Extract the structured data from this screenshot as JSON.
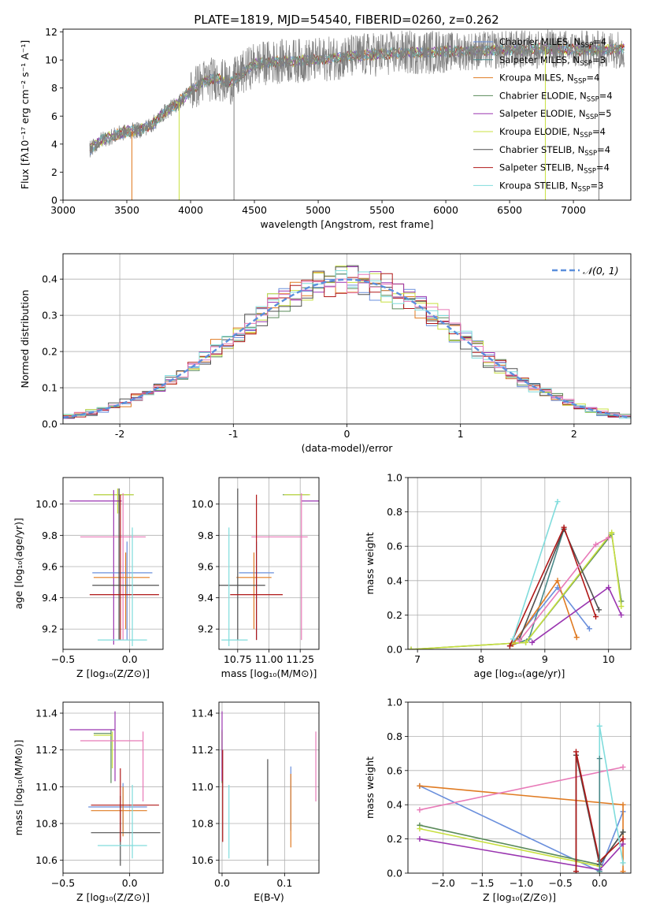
{
  "title": "PLATE=1819, MJD=54540, FIBERID=0260, z=0.262",
  "colors": {
    "chabrier_miles": "#6a8fdc",
    "salpeter_miles": "#4a8a8a",
    "kroupa_miles": "#e07b22",
    "chabrier_elodie": "#5a8a5a",
    "salpeter_elodie": "#9a35b0",
    "kroupa_elodie": "#c8e040",
    "chabrier_stelib": "#505050",
    "salpeter_stelib": "#b01818",
    "kroupa_stelib": "#80dcdc",
    "pink": "#e87ab8",
    "grey_spectrum": "#7f7f7f",
    "normal_curve": "#5b8fdc",
    "grid": "#b0b0b0"
  },
  "chart_data": [
    {
      "id": "spectrum",
      "type": "line",
      "title": "PLATE=1819, MJD=54540, FIBERID=0260, z=0.262",
      "xlabel": "wavelength [Angstrom, rest frame]",
      "ylabel": "Flux [fλ10⁻¹⁷ erg cm⁻² s⁻¹ A⁻¹]",
      "xlim": [
        3000,
        7450
      ],
      "ylim": [
        0,
        12.2
      ],
      "xticks": [
        3000,
        3500,
        4000,
        4500,
        5000,
        5500,
        6000,
        6500,
        7000
      ],
      "yticks": [
        0,
        2,
        4,
        6,
        8,
        10,
        12
      ],
      "legend_position": "right",
      "grid": false,
      "continuum": {
        "x": [
          3210,
          3300,
          3400,
          3500,
          3600,
          3700,
          3800,
          3900,
          4000,
          4100,
          4200,
          4300,
          4500,
          4700,
          5000,
          5300,
          5600,
          6000,
          6400,
          6800,
          7200,
          7400
        ],
        "y": [
          3.6,
          4.3,
          4.6,
          4.9,
          5.0,
          5.4,
          6.3,
          6.9,
          7.8,
          8.5,
          8.7,
          8.3,
          9.7,
          9.9,
          10.0,
          10.3,
          10.5,
          10.6,
          10.7,
          10.8,
          10.7,
          10.8
        ]
      },
      "legend": [
        "Chabrier MILES, N_SSP=4",
        "Salpeter MILES, N_SSP=3",
        "Kroupa MILES, N_SSP=4",
        "Chabrier ELODIE, N_SSP=4",
        "Salpeter ELODIE, N_SSP=5",
        "Kroupa ELODIE, N_SSP=4",
        "Chabrier STELIB, N_SSP=4",
        "Salpeter STELIB, N_SSP=4",
        "Kroupa STELIB, N_SSP=3"
      ]
    },
    {
      "id": "residuals",
      "type": "line",
      "xlabel": "(data-model)/error",
      "ylabel": "Normed distribution",
      "xlim": [
        -2.5,
        2.5
      ],
      "ylim": [
        0,
        0.47
      ],
      "xticks": [
        -2,
        -1,
        0,
        1,
        2
      ],
      "yticks": [
        0.0,
        0.1,
        0.2,
        0.3,
        0.4
      ],
      "grid": true,
      "legend_position": "top-right",
      "legend": [
        "𝒩(0, 1)"
      ],
      "bin_width": 0.1
    },
    {
      "id": "age_vs_Z",
      "type": "scatter",
      "xlabel": "Z [log₁₀(Z/Z⊙)]",
      "ylabel": "age  [log₁₀(age/yr)]",
      "xlim": [
        -0.5,
        0.25
      ],
      "ylim": [
        9.07,
        10.17
      ],
      "xticks": [
        -0.5,
        0.0
      ],
      "xtick_labels": [
        "−0.5",
        "0.0"
      ],
      "yticks": [
        9.2,
        9.4,
        9.6,
        9.8,
        10.0
      ],
      "grid": true,
      "points": [
        {
          "x": -0.08,
          "y": 10.06,
          "xerr": [
            0.19,
            0.11
          ],
          "yerr": [
            0.12,
            0.04
          ],
          "color": "#5a8a5a"
        },
        {
          "x": -0.09,
          "y": 10.06,
          "xerr": [
            0.18,
            0.12
          ],
          "yerr": [
            0.12,
            0.04
          ],
          "color": "#c8e040"
        },
        {
          "x": -0.12,
          "y": 10.02,
          "xerr": [
            0.33,
            0.06
          ],
          "yerr": [
            0.92,
            0.07
          ],
          "color": "#9a35b0"
        },
        {
          "x": -0.05,
          "y": 9.79,
          "xerr": [
            0.32,
            0.17
          ],
          "yerr": [
            0.66,
            0.28
          ],
          "color": "#e87ab8"
        },
        {
          "x": -0.02,
          "y": 9.56,
          "xerr": [
            0.26,
            0.19
          ],
          "yerr": [
            0.43,
            0.2
          ],
          "color": "#6a8fdc"
        },
        {
          "x": -0.03,
          "y": 9.53,
          "xerr": [
            0.24,
            0.18
          ],
          "yerr": [
            0.33,
            0.16
          ],
          "color": "#e07b22"
        },
        {
          "x": -0.08,
          "y": 9.48,
          "xerr": [
            0.2,
            0.3
          ],
          "yerr": [
            0.35,
            0.62
          ],
          "color": "#505050"
        },
        {
          "x": -0.07,
          "y": 9.42,
          "xerr": [
            0.23,
            0.29
          ],
          "yerr": [
            0.29,
            0.64
          ],
          "color": "#b01818"
        },
        {
          "x": 0.02,
          "y": 9.13,
          "xerr": [
            0.26,
            0.11
          ],
          "yerr": [
            0.04,
            0.72
          ],
          "color": "#80dcdc"
        }
      ]
    },
    {
      "id": "age_vs_mass",
      "type": "scatter",
      "xlabel": "mass [log₁₀(M/M⊙)]",
      "ylabel": "",
      "xlim": [
        10.6,
        11.4
      ],
      "ylim": [
        9.07,
        10.17
      ],
      "xticks": [
        10.75,
        11.0,
        11.25
      ],
      "xtick_labels": [
        "10.75",
        "11.00",
        "11.25"
      ],
      "yticks": [
        9.2,
        9.4,
        9.6,
        9.8,
        10.0
      ],
      "grid": true,
      "points": [
        {
          "x": 11.27,
          "y": 10.06,
          "xerr": [
            0.16,
            0.05
          ],
          "yerr": [
            0.0,
            0.0
          ],
          "color": "#5a8a5a"
        },
        {
          "x": 11.28,
          "y": 10.06,
          "xerr": [
            0.16,
            0.05
          ],
          "yerr": [
            0.0,
            0.0
          ],
          "color": "#c8e040"
        },
        {
          "x": 11.3,
          "y": 10.02,
          "xerr": [
            0.04,
            0.16
          ],
          "yerr": [
            0.0,
            0.0
          ],
          "color": "#9a35b0"
        },
        {
          "x": 11.26,
          "y": 9.79,
          "xerr": [
            0.4,
            0.05
          ],
          "yerr": [
            0.66,
            0.28
          ],
          "color": "#e87ab8"
        },
        {
          "x": 10.9,
          "y": 9.56,
          "xerr": [
            0.14,
            0.14
          ],
          "yerr": [
            0.43,
            0.2
          ],
          "color": "#6a8fdc"
        },
        {
          "x": 10.88,
          "y": 9.53,
          "xerr": [
            0.14,
            0.14
          ],
          "yerr": [
            0.33,
            0.16
          ],
          "color": "#e07b22"
        },
        {
          "x": 10.75,
          "y": 9.48,
          "xerr": [
            0.19,
            0.22
          ],
          "yerr": [
            0.35,
            0.62
          ],
          "color": "#505050"
        },
        {
          "x": 10.9,
          "y": 9.42,
          "xerr": [
            0.21,
            0.21
          ],
          "yerr": [
            0.29,
            0.64
          ],
          "color": "#b01818"
        },
        {
          "x": 10.68,
          "y": 9.13,
          "xerr": [
            0.06,
            0.15
          ],
          "yerr": [
            0.04,
            0.72
          ],
          "color": "#80dcdc"
        }
      ]
    },
    {
      "id": "weight_vs_age",
      "type": "line",
      "xlabel": "age  [log₁₀(age/yr)]",
      "ylabel": "mass weight",
      "xlim": [
        6.85,
        10.35
      ],
      "ylim": [
        0,
        1.0
      ],
      "xticks": [
        7,
        8,
        9,
        10
      ],
      "yticks": [
        0.0,
        0.2,
        0.4,
        0.6,
        0.8,
        1.0
      ],
      "grid": true,
      "series": [
        {
          "color": "#6a8fdc",
          "x": [
            8.5,
            9.2,
            9.7
          ],
          "y": [
            0.04,
            0.36,
            0.12
          ]
        },
        {
          "color": "#4a8a8a",
          "x": [
            8.45,
            8.75,
            9.3
          ],
          "y": [
            0.02,
            0.06,
            0.7
          ]
        },
        {
          "color": "#e07b22",
          "x": [
            8.5,
            9.2,
            9.5
          ],
          "y": [
            0.03,
            0.4,
            0.07
          ]
        },
        {
          "color": "#5a8a5a",
          "x": [
            6.9,
            8.7,
            10.05,
            10.2
          ],
          "y": [
            0.0,
            0.04,
            0.67,
            0.28
          ]
        },
        {
          "color": "#9a35b0",
          "x": [
            8.8,
            10.0,
            10.2
          ],
          "y": [
            0.04,
            0.36,
            0.2
          ]
        },
        {
          "color": "#c8e040",
          "x": [
            6.9,
            8.7,
            10.05,
            10.2
          ],
          "y": [
            0.0,
            0.04,
            0.68,
            0.25
          ]
        },
        {
          "color": "#505050",
          "x": [
            8.6,
            9.3,
            9.85
          ],
          "y": [
            0.06,
            0.7,
            0.23
          ]
        },
        {
          "color": "#b01818",
          "x": [
            8.45,
            9.3,
            9.8
          ],
          "y": [
            0.02,
            0.71,
            0.19
          ]
        },
        {
          "color": "#80dcdc",
          "x": [
            8.5,
            9.2
          ],
          "y": [
            0.06,
            0.86
          ]
        },
        {
          "color": "#e87ab8",
          "x": [
            8.6,
            9.8,
            10.0
          ],
          "y": [
            0.05,
            0.61,
            0.65
          ]
        }
      ]
    },
    {
      "id": "mass_vs_Z",
      "type": "scatter",
      "xlabel": "Z [log₁₀(Z/Z⊙)]",
      "ylabel": "mass [log₁₀(M/M⊙)]",
      "xlim": [
        -0.5,
        0.25
      ],
      "ylim": [
        10.53,
        11.46
      ],
      "xticks": [
        -0.5,
        0.0
      ],
      "xtick_labels": [
        "−0.5",
        "0.0"
      ],
      "yticks": [
        10.6,
        10.8,
        11.0,
        11.2,
        11.4
      ],
      "grid": true,
      "points": [
        {
          "x": -0.14,
          "y": 11.29,
          "xerr": [
            0.13,
            0.0
          ],
          "yerr": [
            0.27,
            0.02
          ],
          "color": "#5a8a5a"
        },
        {
          "x": -0.13,
          "y": 11.28,
          "xerr": [
            0.14,
            0.0
          ],
          "yerr": [
            0.18,
            0.02
          ],
          "color": "#c8e040"
        },
        {
          "x": -0.11,
          "y": 11.31,
          "xerr": [
            0.34,
            0.0
          ],
          "yerr": [
            0.28,
            0.1
          ],
          "color": "#9a35b0"
        },
        {
          "x": 0.1,
          "y": 11.25,
          "xerr": [
            0.47,
            0.0
          ],
          "yerr": [
            0.33,
            0.05
          ],
          "color": "#e87ab8"
        },
        {
          "x": -0.05,
          "y": 10.89,
          "xerr": [
            0.26,
            0.18
          ],
          "yerr": [
            0.13,
            0.13
          ],
          "color": "#6a8fdc"
        },
        {
          "x": -0.05,
          "y": 10.87,
          "xerr": [
            0.24,
            0.18
          ],
          "yerr": [
            0.14,
            0.13
          ],
          "color": "#e07b22"
        },
        {
          "x": -0.07,
          "y": 10.75,
          "xerr": [
            0.22,
            0.3
          ],
          "yerr": [
            0.18,
            0.2
          ],
          "color": "#505050"
        },
        {
          "x": -0.07,
          "y": 10.9,
          "xerr": [
            0.22,
            0.29
          ],
          "yerr": [
            0.2,
            0.2
          ],
          "color": "#b01818"
        },
        {
          "x": 0.02,
          "y": 10.68,
          "xerr": [
            0.26,
            0.11
          ],
          "yerr": [
            0.07,
            0.33
          ],
          "color": "#80dcdc"
        }
      ]
    },
    {
      "id": "mass_vs_ebv",
      "type": "scatter",
      "xlabel": "E(B-V)",
      "ylabel": "",
      "xlim": [
        -0.005,
        0.155
      ],
      "ylim": [
        10.53,
        11.46
      ],
      "xticks": [
        0.0,
        0.1
      ],
      "xtick_labels": [
        "0.0",
        "0.1"
      ],
      "yticks": [
        10.6,
        10.8,
        11.0,
        11.2,
        11.4
      ],
      "grid": true,
      "points": [
        {
          "x": 0.0,
          "y": 11.29,
          "xerr": [
            0,
            0
          ],
          "yerr": [
            0.27,
            0.02
          ],
          "color": "#5a8a5a"
        },
        {
          "x": 0.0,
          "y": 11.28,
          "xerr": [
            0,
            0
          ],
          "yerr": [
            0.18,
            0.02
          ],
          "color": "#c8e040"
        },
        {
          "x": 0.0,
          "y": 11.31,
          "xerr": [
            0,
            0
          ],
          "yerr": [
            0.28,
            0.1
          ],
          "color": "#9a35b0"
        },
        {
          "x": 0.15,
          "y": 11.25,
          "xerr": [
            0,
            0
          ],
          "yerr": [
            0.33,
            0.05
          ],
          "color": "#e87ab8"
        },
        {
          "x": 0.11,
          "y": 10.89,
          "xerr": [
            0,
            0
          ],
          "yerr": [
            0.13,
            0.22
          ],
          "color": "#6a8fdc"
        },
        {
          "x": 0.11,
          "y": 10.87,
          "xerr": [
            0,
            0
          ],
          "yerr": [
            0.2,
            0.2
          ],
          "color": "#e07b22"
        },
        {
          "x": 0.073,
          "y": 10.75,
          "xerr": [
            0,
            0
          ],
          "yerr": [
            0.18,
            0.4
          ],
          "color": "#505050"
        },
        {
          "x": 0.001,
          "y": 10.9,
          "xerr": [
            0,
            0
          ],
          "yerr": [
            0.2,
            0.3
          ],
          "color": "#b01818"
        },
        {
          "x": 0.011,
          "y": 10.68,
          "xerr": [
            0,
            0
          ],
          "yerr": [
            0.07,
            0.33
          ],
          "color": "#80dcdc"
        }
      ]
    },
    {
      "id": "weight_vs_Z",
      "type": "line",
      "xlabel": "Z [log₁₀(Z/Z⊙)]",
      "ylabel": "mass weight",
      "xlim": [
        -2.45,
        0.4
      ],
      "ylim": [
        0,
        1.0
      ],
      "xticks": [
        -2.0,
        -1.5,
        -1.0,
        -0.5,
        0.0
      ],
      "xtick_labels": [
        "−2.0",
        "−1.5",
        "−1.0",
        "−0.5",
        "0.0"
      ],
      "yticks": [
        0.0,
        0.2,
        0.4,
        0.6,
        0.8,
        1.0
      ],
      "grid": true,
      "series": [
        {
          "color": "#6a8fdc",
          "x": [
            -2.3,
            0.0,
            0.3
          ],
          "y": [
            0.51,
            0.01,
            0.36
          ]
        },
        {
          "color": "#e07b22",
          "x": [
            -2.3,
            0.3,
            0.3
          ],
          "y": [
            0.51,
            0.4,
            0.01
          ]
        },
        {
          "color": "#5a8a5a",
          "x": [
            -2.3,
            0.0,
            0.3
          ],
          "y": [
            0.28,
            0.05,
            0.24
          ]
        },
        {
          "color": "#9a35b0",
          "x": [
            -2.3,
            0.0,
            0.3
          ],
          "y": [
            0.2,
            0.02,
            0.17
          ]
        },
        {
          "color": "#c8e040",
          "x": [
            -2.3,
            0.0
          ],
          "y": [
            0.26,
            0.04
          ]
        },
        {
          "color": "#e87ab8",
          "x": [
            -2.3,
            0.3
          ],
          "y": [
            0.37,
            0.62
          ]
        },
        {
          "color": "#505050",
          "x": [
            -0.3,
            -0.3,
            0.0,
            0.3
          ],
          "y": [
            0.01,
            0.69,
            0.05,
            0.24
          ]
        },
        {
          "color": "#b01818",
          "x": [
            -0.3,
            -0.3,
            0.0,
            0.3
          ],
          "y": [
            0.01,
            0.71,
            0.07,
            0.2
          ]
        },
        {
          "color": "#80dcdc",
          "x": [
            0.0,
            0.0,
            0.3
          ],
          "y": [
            0.01,
            0.86,
            0.06
          ]
        },
        {
          "color": "#4a8a8a",
          "x": [
            0.0,
            0.0
          ],
          "y": [
            0.01,
            0.67
          ]
        }
      ]
    }
  ]
}
